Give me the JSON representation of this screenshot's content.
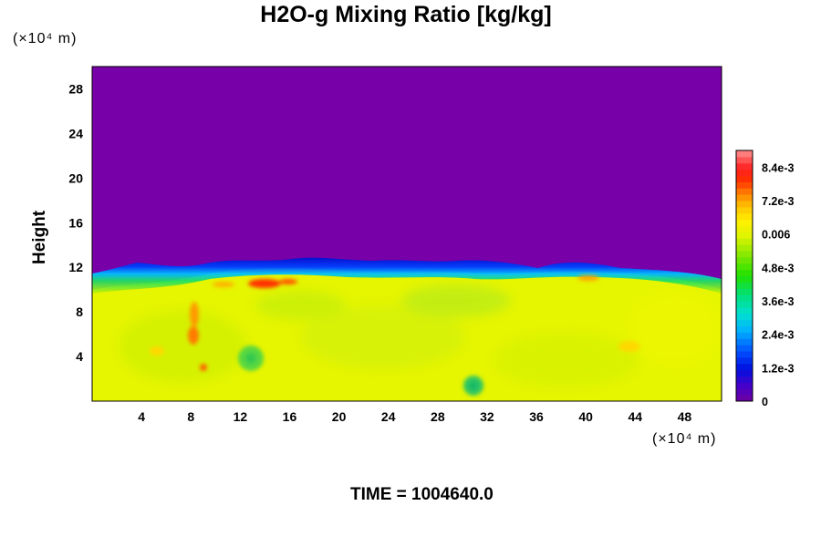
{
  "chart_data": {
    "type": "heatmap",
    "title": "H2O-g Mixing Ratio [kg/kg]",
    "x_unit_label": "(×10⁴ m)",
    "y_unit_label": "(×10⁴ m)",
    "ylabel": "Height",
    "xlabel": "",
    "footer": "TIME = 1004640.0",
    "xlim": [
      0,
      51
    ],
    "ylim": [
      0,
      30
    ],
    "x_ticks": [
      "4",
      "8",
      "12",
      "16",
      "20",
      "24",
      "28",
      "32",
      "36",
      "40",
      "44",
      "48"
    ],
    "y_ticks": [
      "4",
      "8",
      "12",
      "16",
      "20",
      "24",
      "28"
    ],
    "colorbar": {
      "range": [
        0,
        0.009
      ],
      "tick_labels": [
        "0",
        "1.2e-3",
        "2.4e-3",
        "3.6e-3",
        "4.8e-3",
        "0.006",
        "7.2e-3",
        "8.4e-3"
      ],
      "tick_values": [
        0,
        0.0012,
        0.0024,
        0.0036,
        0.0048,
        0.006,
        0.0072,
        0.0084
      ]
    },
    "features": {
      "moist_layer_top_height": 11,
      "dry_air_value": 0,
      "typical_lower_value": 0.0066
    }
  }
}
